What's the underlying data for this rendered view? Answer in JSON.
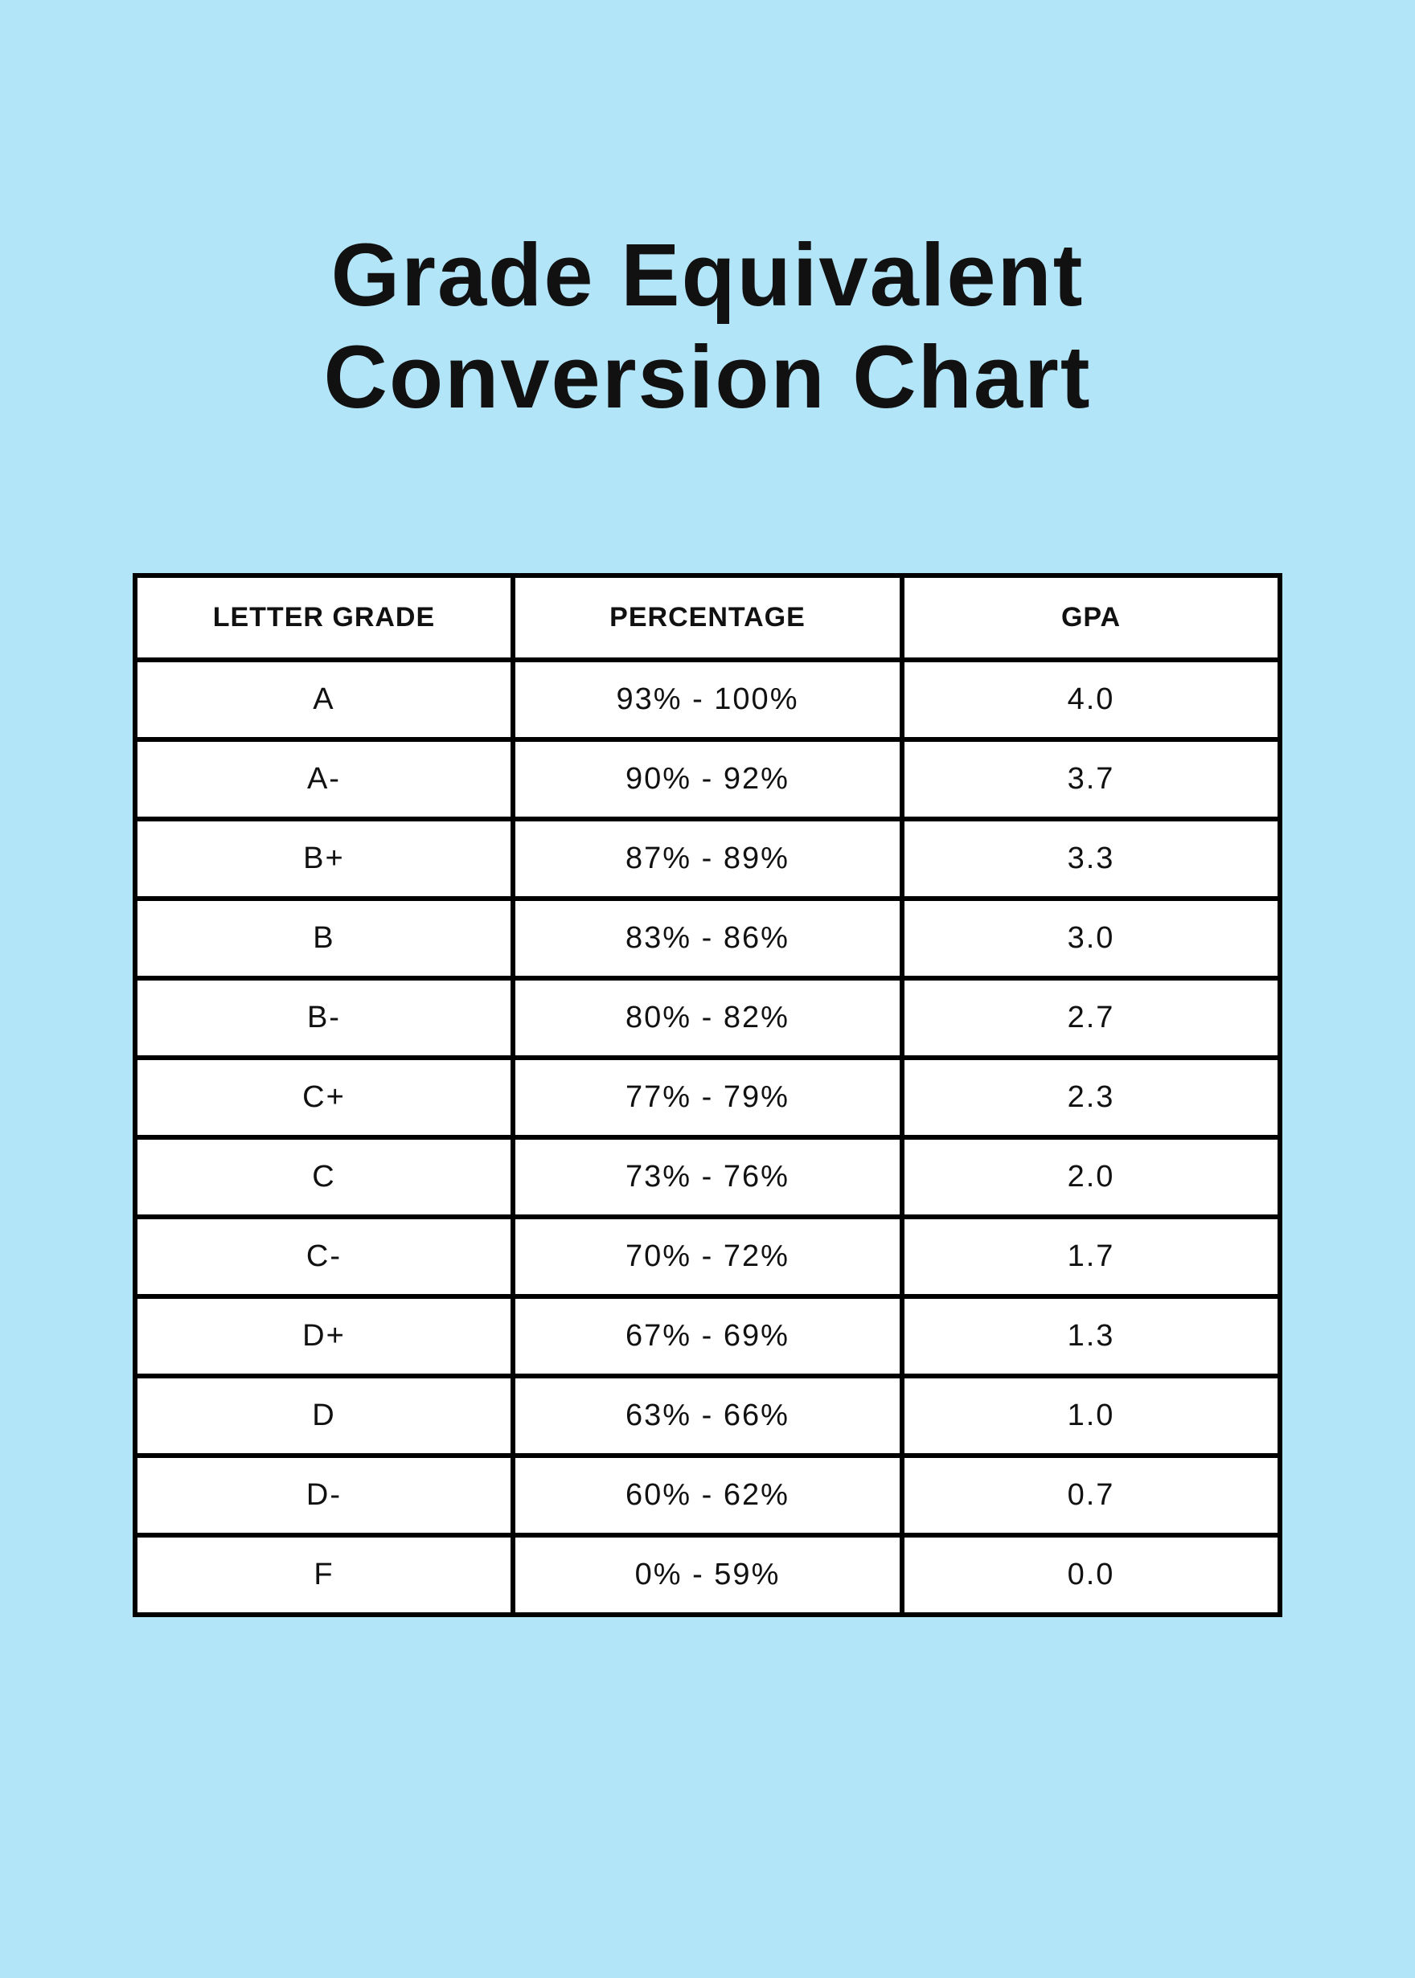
{
  "title_line1": "Grade Equivalent",
  "title_line2": "Conversion Chart",
  "table": {
    "type": "table",
    "background_color": "#b3e5f9",
    "cell_background": "#ffffff",
    "border_color": "#000000",
    "border_width": 6,
    "title_fontsize": 110,
    "title_color": "#111111",
    "header_fontsize": 34,
    "header_fontweight": 700,
    "cell_fontsize": 38,
    "cell_fontweight": 400,
    "text_color": "#111111",
    "columns": [
      {
        "key": "letter",
        "label": "LETTER GRADE",
        "width_pct": 33,
        "align": "center"
      },
      {
        "key": "percentage",
        "label": "PERCENTAGE",
        "width_pct": 34,
        "align": "center"
      },
      {
        "key": "gpa",
        "label": "GPA",
        "width_pct": 33,
        "align": "center"
      }
    ],
    "rows": [
      {
        "letter": "A",
        "percentage": "93% - 100%",
        "gpa": "4.0"
      },
      {
        "letter": "A-",
        "percentage": "90% - 92%",
        "gpa": "3.7"
      },
      {
        "letter": "B+",
        "percentage": "87% - 89%",
        "gpa": "3.3"
      },
      {
        "letter": "B",
        "percentage": "83% - 86%",
        "gpa": "3.0"
      },
      {
        "letter": "B-",
        "percentage": "80% - 82%",
        "gpa": "2.7"
      },
      {
        "letter": "C+",
        "percentage": "77% - 79%",
        "gpa": "2.3"
      },
      {
        "letter": "C",
        "percentage": "73% - 76%",
        "gpa": "2.0"
      },
      {
        "letter": "C-",
        "percentage": "70% - 72%",
        "gpa": "1.7"
      },
      {
        "letter": "D+",
        "percentage": "67% - 69%",
        "gpa": "1.3"
      },
      {
        "letter": "D",
        "percentage": "63% - 66%",
        "gpa": "1.0"
      },
      {
        "letter": "D-",
        "percentage": "60% - 62%",
        "gpa": "0.7"
      },
      {
        "letter": "F",
        "percentage": "0% - 59%",
        "gpa": "0.0"
      }
    ]
  }
}
